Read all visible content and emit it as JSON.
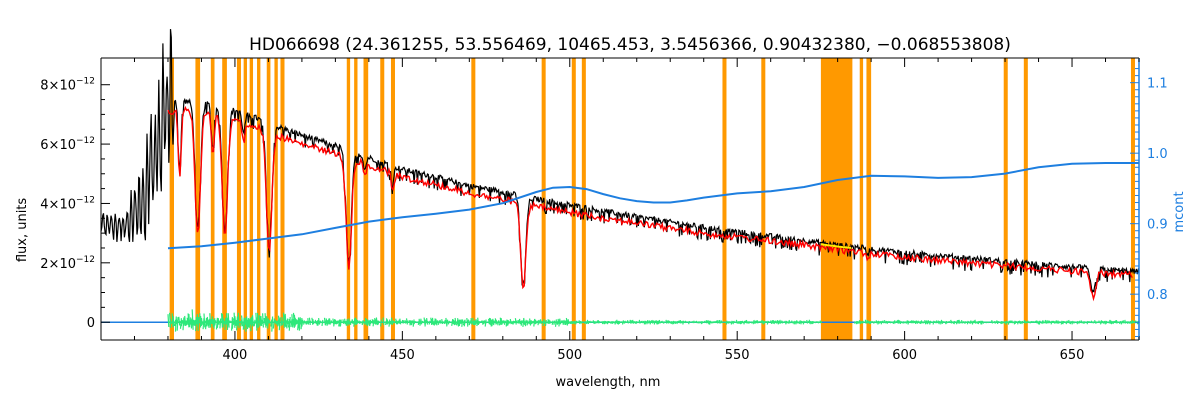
{
  "chart_data": {
    "type": "line",
    "title": "HD066698   (24.361255, 53.556469, 10465.453, 3.5456366, 0.90432380, −0.068553808)",
    "xlabel": "wavelength, nm",
    "ylabel": "flux, units",
    "y2label": "mcont",
    "xlim": [
      360,
      670
    ],
    "ylim": [
      -6e-13,
      8.9e-12
    ],
    "y2lim": [
      0.735,
      1.135
    ],
    "grid": false,
    "x_ticks": [
      400,
      450,
      500,
      550,
      600,
      650
    ],
    "y_ticks": [
      {
        "value": 8e-12,
        "mant": "8×10",
        "exp": "−12"
      },
      {
        "value": 6e-12,
        "mant": "6×10",
        "exp": "−12"
      },
      {
        "value": 4e-12,
        "mant": "4×10",
        "exp": "−12"
      },
      {
        "value": 2e-12,
        "mant": "2×10",
        "exp": "−12"
      },
      {
        "value": 0,
        "mant": "0",
        "exp": ""
      }
    ],
    "y2_ticks": [
      0.8,
      0.9,
      1.0,
      1.1
    ],
    "y2_tick_labels": [
      "0.8",
      "0.9",
      "1.0",
      "1.1"
    ],
    "masked_regions": [
      [
        380.5,
        381.8
      ],
      [
        388.2,
        389.6
      ],
      [
        392.8,
        393.9
      ],
      [
        396.2,
        397.6
      ],
      [
        400.6,
        401.8
      ],
      [
        402.6,
        403.6
      ],
      [
        404.4,
        405.4
      ],
      [
        406.6,
        407.6
      ],
      [
        409.5,
        410.6
      ],
      [
        411.8,
        412.8
      ],
      [
        413.6,
        414.8
      ],
      [
        433.4,
        434.4
      ],
      [
        435.6,
        436.6
      ],
      [
        438.4,
        439.8
      ],
      [
        443.4,
        444.6
      ],
      [
        446.6,
        447.8
      ],
      [
        470.6,
        471.8
      ],
      [
        491.6,
        492.8
      ],
      [
        500.6,
        501.8
      ],
      [
        503.6,
        504.8
      ],
      [
        545.6,
        546.8
      ],
      [
        557.2,
        558.4
      ],
      [
        575.0,
        584.4
      ],
      [
        586.6,
        587.6
      ],
      [
        588.6,
        590.0
      ],
      [
        629.6,
        630.8
      ],
      [
        635.6,
        636.8
      ],
      [
        667.6,
        668.8
      ]
    ],
    "absorption_lines": [
      {
        "x": 383.5,
        "depth": 0.3
      },
      {
        "x": 388.9,
        "depth": 0.58
      },
      {
        "x": 397.0,
        "depth": 0.58
      },
      {
        "x": 393.4,
        "depth": 0.2
      },
      {
        "x": 410.2,
        "depth": 0.62
      },
      {
        "x": 434.0,
        "depth": 0.66
      },
      {
        "x": 486.1,
        "depth": 0.7
      },
      {
        "x": 656.3,
        "depth": 0.45
      },
      {
        "x": 447.1,
        "depth": 0.1
      },
      {
        "x": 402.6,
        "depth": 0.1
      },
      {
        "x": 438.8,
        "depth": 0.08
      },
      {
        "x": 588.9,
        "depth": 0.08
      }
    ],
    "series": [
      {
        "color": "#000000",
        "x": [
          360,
          368,
          372,
          375,
          378,
          380,
          382,
          385,
          390,
          395,
          400,
          405,
          410,
          415,
          420,
          430,
          440,
          450,
          460,
          470,
          480,
          490,
          500,
          520,
          540,
          560,
          580,
          600,
          620,
          640,
          660,
          670
        ],
        "y": [
          3.35e-12,
          3.3e-12,
          4e-12,
          5.4e-12,
          6.6e-12,
          7.4e-12,
          7.5e-12,
          7.45e-12,
          7.4e-12,
          7.3e-12,
          7.15e-12,
          6.95e-12,
          6.7e-12,
          6.5e-12,
          6.3e-12,
          5.95e-12,
          5.55e-12,
          5.15e-12,
          4.9e-12,
          4.6e-12,
          4.4e-12,
          4.15e-12,
          3.95e-12,
          3.55e-12,
          3.2e-12,
          2.9e-12,
          2.6e-12,
          2.35e-12,
          2.15e-12,
          1.95e-12,
          1.78e-12,
          1.7e-12
        ]
      },
      {
        "color": "#ff0000",
        "x": [
          380,
          385,
          390,
          395,
          400,
          405,
          410,
          415,
          420,
          430,
          440,
          450,
          460,
          470,
          480,
          490,
          500,
          520,
          540,
          560,
          580,
          600,
          620,
          640,
          660,
          668
        ],
        "y": [
          7.2e-12,
          7.25e-12,
          7.2e-12,
          7.1e-12,
          6.95e-12,
          6.75e-12,
          6.5e-12,
          6.3e-12,
          6.1e-12,
          5.8e-12,
          5.4e-12,
          5e-12,
          4.75e-12,
          4.45e-12,
          4.25e-12,
          4e-12,
          3.8e-12,
          3.45e-12,
          3.1e-12,
          2.85e-12,
          2.55e-12,
          2.3e-12,
          2.1e-12,
          1.92e-12,
          1.75e-12,
          1.7e-12
        ]
      },
      {
        "color": "#1e7fe0",
        "axis": "y2",
        "x": [
          360,
          380,
          400,
          420,
          440,
          460,
          480,
          490,
          500,
          510,
          520,
          530,
          540,
          550,
          560,
          570,
          580,
          590,
          600,
          610,
          620,
          630,
          640,
          650,
          660,
          670
        ],
        "y": [
          0.755,
          0.755,
          0.755,
          0.755,
          0.755,
          0.756,
          0.757,
          0.758,
          0.759,
          0.76,
          0.761,
          0.76,
          0.759,
          0.76,
          0.761,
          0.759,
          0.76,
          0.761,
          0.76,
          0.759,
          0.76,
          0.761,
          0.76,
          0.761,
          0.76,
          0.76
        ]
      },
      {
        "color": "#1e7fe0",
        "axis": "y2",
        "x": [
          380,
          390,
          400,
          410,
          420,
          430,
          440,
          450,
          460,
          470,
          480,
          490,
          495,
          500,
          505,
          510,
          515,
          520,
          525,
          530,
          535,
          540,
          550,
          560,
          570,
          580,
          590,
          600,
          610,
          620,
          630,
          640,
          650,
          660,
          670
        ],
        "y": [
          0.865,
          0.868,
          0.873,
          0.879,
          0.885,
          0.894,
          0.903,
          0.909,
          0.914,
          0.92,
          0.929,
          0.945,
          0.951,
          0.952,
          0.949,
          0.942,
          0.936,
          0.932,
          0.93,
          0.93,
          0.933,
          0.937,
          0.943,
          0.946,
          0.952,
          0.962,
          0.968,
          0.967,
          0.965,
          0.966,
          0.971,
          0.98,
          0.985,
          0.986,
          0.986
        ]
      },
      {
        "color": "#2ce87a",
        "x": [
          380,
          670
        ],
        "y": [
          0,
          0
        ]
      }
    ]
  }
}
